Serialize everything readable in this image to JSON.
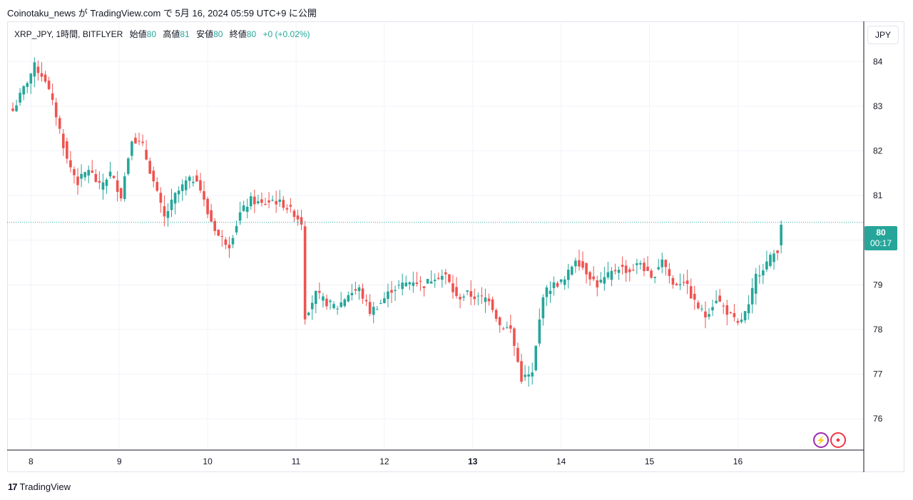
{
  "caption": "Coinotaku_news が TradingView.com で 5月 16, 2024 05:59 UTC+9 に公開",
  "legend": {
    "symbol": "XRP_JPY, 1時間, BITFLYER",
    "open_label": "始値",
    "open": "80",
    "high_label": "高値",
    "high": "81",
    "low_label": "安値",
    "low": "80",
    "close_label": "終値",
    "close": "80",
    "change": "+0 (+0.02%)"
  },
  "currency_button": "JPY",
  "price_tag": {
    "price": "80",
    "countdown": "00:17"
  },
  "footer": {
    "brand_mark": "17",
    "brand": "TradingView"
  },
  "colors": {
    "up": "#26a69a",
    "down": "#ef5350",
    "grid": "#f0f3fa",
    "axis_text": "#131722"
  },
  "icons": [
    "lightning-icon",
    "record-icon"
  ],
  "chart_data": {
    "type": "candlestick",
    "y_ticks": [
      76,
      77,
      78,
      79,
      80,
      81,
      82,
      83,
      84
    ],
    "ylim": [
      75.3,
      84.9
    ],
    "x_ticks": [
      "8",
      "9",
      "10",
      "11",
      "12",
      "13",
      "14",
      "15",
      "16"
    ],
    "bold_x_tick": "13",
    "current_price_line": 80.4,
    "series_anchors": [
      {
        "t": 0,
        "v": 82.9
      },
      {
        "t": 3,
        "v": 83.4
      },
      {
        "t": 6,
        "v": 83.9
      },
      {
        "t": 9,
        "v": 83.6
      },
      {
        "t": 12,
        "v": 82.8
      },
      {
        "t": 15,
        "v": 81.8
      },
      {
        "t": 18,
        "v": 81.3
      },
      {
        "t": 21,
        "v": 81.6
      },
      {
        "t": 24,
        "v": 81.2
      },
      {
        "t": 27,
        "v": 81.5
      },
      {
        "t": 30,
        "v": 81.0
      },
      {
        "t": 33,
        "v": 82.3
      },
      {
        "t": 36,
        "v": 82.1
      },
      {
        "t": 39,
        "v": 81.3
      },
      {
        "t": 42,
        "v": 80.5
      },
      {
        "t": 45,
        "v": 81.0
      },
      {
        "t": 48,
        "v": 81.3
      },
      {
        "t": 51,
        "v": 81.4
      },
      {
        "t": 54,
        "v": 80.6
      },
      {
        "t": 57,
        "v": 80.1
      },
      {
        "t": 60,
        "v": 79.9
      },
      {
        "t": 63,
        "v": 80.6
      },
      {
        "t": 66,
        "v": 80.9
      },
      {
        "t": 69,
        "v": 80.8
      },
      {
        "t": 72,
        "v": 80.9
      },
      {
        "t": 75,
        "v": 80.8
      },
      {
        "t": 78,
        "v": 80.6
      },
      {
        "t": 80,
        "v": 80.4
      },
      {
        "t": 81,
        "v": 78.3
      },
      {
        "t": 84,
        "v": 78.8
      },
      {
        "t": 87,
        "v": 78.6
      },
      {
        "t": 90,
        "v": 78.5
      },
      {
        "t": 93,
        "v": 78.8
      },
      {
        "t": 96,
        "v": 78.9
      },
      {
        "t": 99,
        "v": 78.4
      },
      {
        "t": 102,
        "v": 78.6
      },
      {
        "t": 105,
        "v": 78.9
      },
      {
        "t": 108,
        "v": 79.0
      },
      {
        "t": 111,
        "v": 79.1
      },
      {
        "t": 114,
        "v": 79.0
      },
      {
        "t": 117,
        "v": 79.2
      },
      {
        "t": 120,
        "v": 79.2
      },
      {
        "t": 123,
        "v": 78.7
      },
      {
        "t": 126,
        "v": 78.8
      },
      {
        "t": 129,
        "v": 78.7
      },
      {
        "t": 132,
        "v": 78.7
      },
      {
        "t": 135,
        "v": 78.1
      },
      {
        "t": 138,
        "v": 78.0
      },
      {
        "t": 141,
        "v": 76.9
      },
      {
        "t": 144,
        "v": 77.0
      },
      {
        "t": 147,
        "v": 78.8
      },
      {
        "t": 150,
        "v": 79.0
      },
      {
        "t": 153,
        "v": 79.1
      },
      {
        "t": 156,
        "v": 79.6
      },
      {
        "t": 159,
        "v": 79.3
      },
      {
        "t": 162,
        "v": 79.0
      },
      {
        "t": 165,
        "v": 79.2
      },
      {
        "t": 168,
        "v": 79.4
      },
      {
        "t": 171,
        "v": 79.3
      },
      {
        "t": 174,
        "v": 79.5
      },
      {
        "t": 177,
        "v": 79.1
      },
      {
        "t": 180,
        "v": 79.6
      },
      {
        "t": 183,
        "v": 79.0
      },
      {
        "t": 186,
        "v": 79.1
      },
      {
        "t": 189,
        "v": 78.6
      },
      {
        "t": 192,
        "v": 78.3
      },
      {
        "t": 195,
        "v": 78.7
      },
      {
        "t": 198,
        "v": 78.4
      },
      {
        "t": 201,
        "v": 78.1
      },
      {
        "t": 204,
        "v": 78.5
      },
      {
        "t": 206,
        "v": 79.2
      },
      {
        "t": 209,
        "v": 79.5
      },
      {
        "t": 212,
        "v": 79.8
      },
      {
        "t": 213,
        "v": 80.4
      }
    ],
    "total_candles": 214
  }
}
